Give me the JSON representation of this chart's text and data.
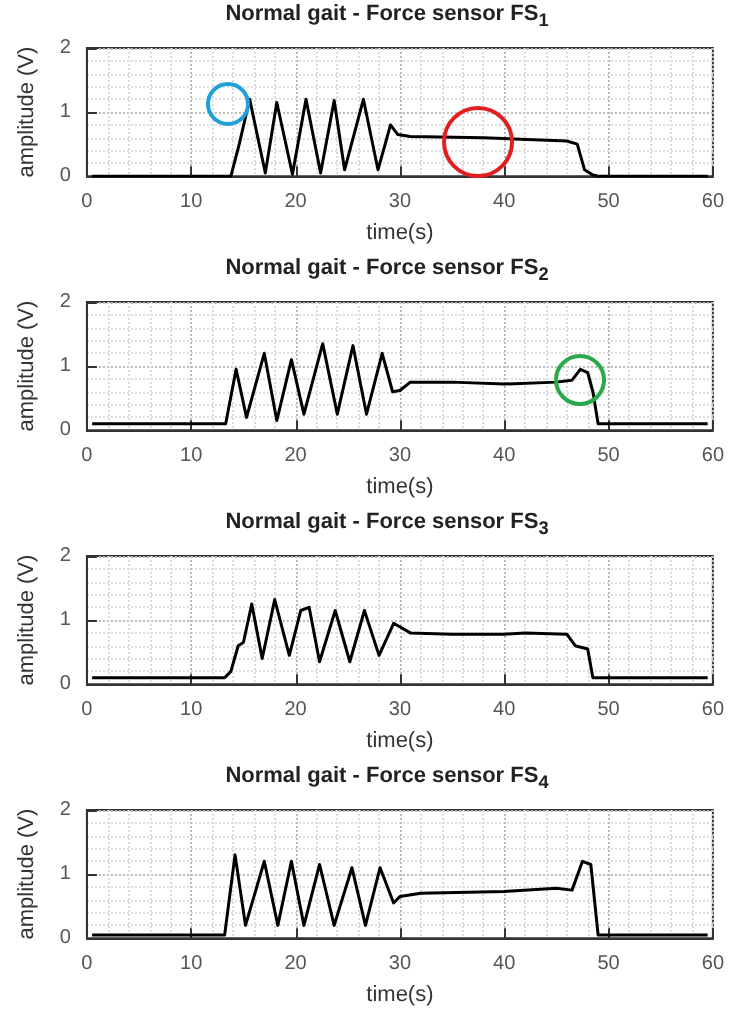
{
  "chart_data": [
    {
      "type": "line",
      "title": "Normal gait  -  Force sensor FS$_{1}$",
      "xlabel": "time(s)",
      "ylabel": "amplitude (V)",
      "color": "#000000",
      "marker": "none",
      "grid": true,
      "xlim": [
        0,
        60
      ],
      "xticks": [
        0,
        10,
        20,
        30,
        40,
        50,
        60
      ],
      "ylim": [
        0,
        2
      ],
      "yticks": [
        0,
        1,
        2
      ],
      "x": [
        0.5,
        13.8,
        14.6,
        15.6,
        17.1,
        18.2,
        19.7,
        21.0,
        22.4,
        23.7,
        24.7,
        26.5,
        27.9,
        29.1,
        29.8,
        31,
        38,
        46,
        47,
        47.7,
        48.5,
        49,
        59.5
      ],
      "values": [
        0,
        0,
        0.5,
        1.2,
        0.05,
        1.15,
        0.03,
        1.2,
        0.05,
        1.18,
        0.1,
        1.2,
        0.1,
        0.8,
        0.65,
        0.62,
        0.6,
        0.55,
        0.5,
        0.1,
        0.02,
        0,
        0
      ]
    },
    {
      "type": "line",
      "title": "Normal gait  -  Force sensor FS$_{2}$",
      "xlabel": "time(s)",
      "ylabel": "amplitude (V)",
      "color": "#000000",
      "marker": "none",
      "grid": true,
      "xlim": [
        0,
        60
      ],
      "xticks": [
        0,
        10,
        20,
        30,
        40,
        50,
        60
      ],
      "ylim": [
        0,
        2
      ],
      "yticks": [
        0,
        1,
        2
      ],
      "x": [
        0.5,
        13.3,
        14.3,
        15.3,
        17.0,
        18.2,
        19.6,
        20.8,
        22.6,
        24.0,
        25.5,
        26.8,
        28.3,
        29.3,
        30,
        31,
        35,
        40,
        45,
        46.5,
        47.3,
        48,
        48.5,
        49,
        59.5
      ],
      "values": [
        0.1,
        0.1,
        0.95,
        0.2,
        1.2,
        0.15,
        1.1,
        0.25,
        1.35,
        0.25,
        1.32,
        0.25,
        1.2,
        0.6,
        0.62,
        0.75,
        0.75,
        0.72,
        0.75,
        0.78,
        0.95,
        0.9,
        0.6,
        0.1,
        0.1
      ]
    },
    {
      "type": "line",
      "title": "Normal gait  -  Force sensor FS$_{3}$",
      "xlabel": "time(s)",
      "ylabel": "amplitude (V)",
      "color": "#000000",
      "marker": "none",
      "grid": true,
      "xlim": [
        0,
        60
      ],
      "xticks": [
        0,
        10,
        20,
        30,
        40,
        50,
        60
      ],
      "ylim": [
        0,
        2
      ],
      "yticks": [
        0,
        1,
        2
      ],
      "x": [
        0.5,
        13.2,
        13.8,
        14.5,
        15.0,
        15.8,
        16.8,
        18.0,
        19.4,
        20.5,
        21.3,
        22.3,
        23.8,
        25.2,
        26.6,
        28.0,
        29.4,
        31,
        35,
        40,
        42,
        46,
        46.8,
        48,
        48.5,
        59.5
      ],
      "values": [
        0.1,
        0.1,
        0.2,
        0.6,
        0.65,
        1.25,
        0.4,
        1.32,
        0.45,
        1.15,
        1.2,
        0.35,
        1.15,
        0.35,
        1.15,
        0.45,
        0.95,
        0.8,
        0.78,
        0.78,
        0.8,
        0.78,
        0.6,
        0.55,
        0.1,
        0.1
      ]
    },
    {
      "type": "line",
      "title": "Normal gait  -  Force sensor FS$_{4}$",
      "xlabel": "time(s)",
      "ylabel": "amplitude (V)",
      "color": "#000000",
      "marker": "none",
      "grid": true,
      "xlim": [
        0,
        60
      ],
      "xticks": [
        0,
        10,
        20,
        30,
        40,
        50,
        60
      ],
      "ylim": [
        0,
        2
      ],
      "yticks": [
        0,
        1,
        2
      ],
      "x": [
        0.5,
        13.2,
        14.2,
        15.2,
        17.0,
        18.3,
        19.6,
        20.8,
        22.3,
        23.7,
        25.4,
        26.7,
        28.1,
        29.4,
        30,
        32,
        40,
        45,
        46.5,
        47.5,
        48.3,
        49,
        59.5
      ],
      "values": [
        0.05,
        0.05,
        1.3,
        0.2,
        1.2,
        0.2,
        1.2,
        0.2,
        1.15,
        0.2,
        1.1,
        0.2,
        1.1,
        0.55,
        0.65,
        0.7,
        0.73,
        0.78,
        0.75,
        1.2,
        1.15,
        0.05,
        0.05
      ]
    }
  ]
}
